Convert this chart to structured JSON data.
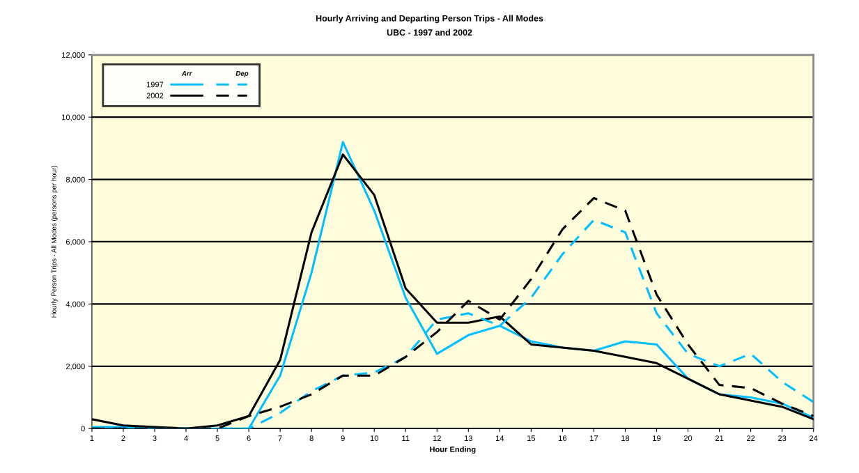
{
  "chart_data": {
    "type": "line",
    "title": "Hourly Arriving and Departing Person Trips - All Modes",
    "subtitle": "UBC - 1997 and 2002",
    "xlabel": "Hour Ending",
    "ylabel": "Hourly Person Trips - All Modes (persons per hour)",
    "x": [
      1,
      2,
      3,
      4,
      5,
      6,
      7,
      8,
      9,
      10,
      11,
      12,
      13,
      14,
      15,
      16,
      17,
      18,
      19,
      20,
      21,
      22,
      23,
      24
    ],
    "series": [
      {
        "name": "1997",
        "color": "#00bfff",
        "line_style": "solid",
        "values": [
          50,
          50,
          0,
          0,
          0,
          0,
          1700,
          5000,
          9200,
          7000,
          4200,
          2400,
          3000,
          3300,
          2800,
          2600,
          2500,
          2800,
          2700,
          1600,
          1100,
          1000,
          800,
          350
        ]
      },
      {
        "name": "2002",
        "color": "#000000",
        "line_style": "solid",
        "values": [
          300,
          100,
          50,
          0,
          100,
          400,
          2200,
          6300,
          8800,
          7500,
          4500,
          3400,
          3400,
          3600,
          2700,
          2600,
          2500,
          2300,
          2100,
          1600,
          1100,
          900,
          700,
          300
        ]
      },
      {
        "color": "#00bfff",
        "line_style": "dashed",
        "values": [
          0,
          0,
          0,
          0,
          0,
          0,
          500,
          1200,
          1700,
          1800,
          2300,
          3500,
          3700,
          3300,
          4200,
          5600,
          6700,
          6300,
          3700,
          2400,
          2000,
          2400,
          1500,
          850
        ]
      },
      {
        "color": "#000000",
        "line_style": "dashed",
        "values": [
          0,
          0,
          0,
          0,
          0,
          400,
          700,
          1100,
          1700,
          1700,
          2300,
          3100,
          4100,
          3500,
          4800,
          6400,
          7400,
          7000,
          4300,
          2700,
          1400,
          1300,
          800,
          400
        ]
      }
    ],
    "annotations": [
      "Arr",
      "Dep"
    ],
    "xlim": [
      1,
      24
    ],
    "xticks": [
      1,
      2,
      3,
      4,
      5,
      6,
      7,
      8,
      9,
      10,
      11,
      12,
      13,
      14,
      15,
      16,
      17,
      18,
      19,
      20,
      21,
      22,
      23,
      24
    ],
    "ylim": [
      0,
      12000
    ],
    "yticks": [
      {
        "value": 0,
        "label": "0"
      },
      {
        "value": 2000,
        "label": "2,000"
      },
      {
        "value": 4000,
        "label": "4,000"
      },
      {
        "value": 6000,
        "label": "6,000"
      },
      {
        "value": 8000,
        "label": "8,000"
      },
      {
        "value": 10000,
        "label": "10,000"
      },
      {
        "value": 12000,
        "label": "12,000"
      }
    ],
    "grid": "y",
    "legend": "top left",
    "marker": "none"
  }
}
